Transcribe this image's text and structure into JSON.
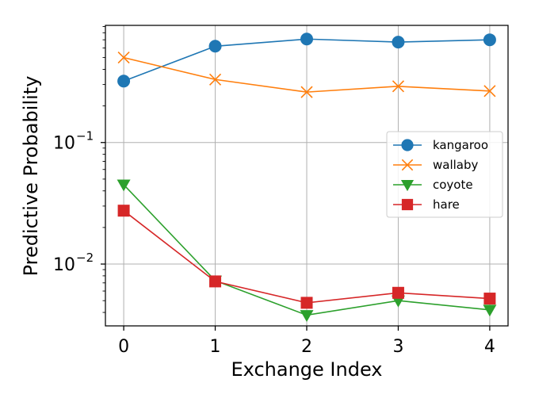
{
  "chart_data": {
    "type": "line",
    "x": [
      0,
      1,
      2,
      3,
      4
    ],
    "x_tick_labels": [
      "0",
      "1",
      "2",
      "3",
      "4"
    ],
    "xlim": [
      -0.2,
      4.2
    ],
    "y_scale": "log",
    "ylim": [
      0.0031,
      0.92
    ],
    "y_major_ticks": [
      {
        "value": 0.1,
        "base": "10",
        "exponent": "−1"
      },
      {
        "value": 0.01,
        "base": "10",
        "exponent": "−2"
      }
    ],
    "xlabel": "Exchange Index",
    "ylabel": "Predictive Probability",
    "grid": true,
    "legend_position": "center-right",
    "series": [
      {
        "name": "kangaroo",
        "values": [
          0.32,
          0.62,
          0.71,
          0.67,
          0.7
        ],
        "color": "#1f77b4",
        "marker": "circle"
      },
      {
        "name": "wallaby",
        "values": [
          0.5,
          0.33,
          0.26,
          0.29,
          0.265
        ],
        "color": "#ff7f0e",
        "marker": "x"
      },
      {
        "name": "coyote",
        "values": [
          0.045,
          0.0073,
          0.0038,
          0.005,
          0.0042
        ],
        "color": "#2ca02c",
        "marker": "triangle-down"
      },
      {
        "name": "hare",
        "values": [
          0.0275,
          0.0072,
          0.0048,
          0.0058,
          0.0052
        ],
        "color": "#d62728",
        "marker": "square"
      }
    ]
  }
}
